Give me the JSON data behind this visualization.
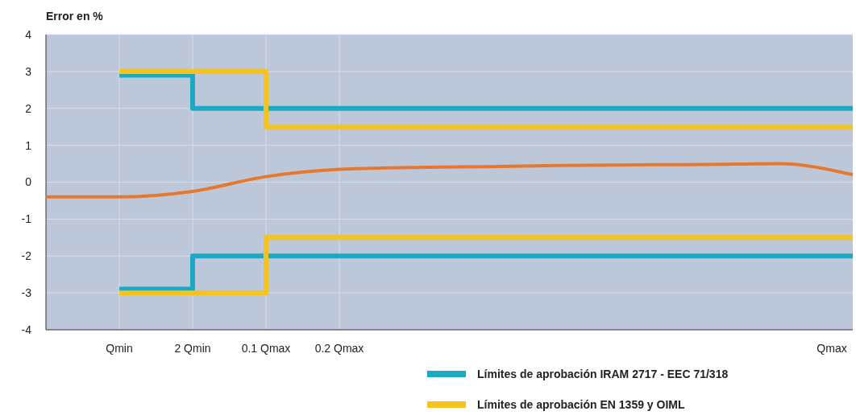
{
  "chart_data": {
    "type": "step",
    "ylabel": "Error en %",
    "categories": [
      null,
      "Qmin",
      "2 Qmin",
      "0.1 Qmax",
      "0.2 Qmax",
      null,
      null,
      null,
      null,
      null,
      null,
      "Qmax"
    ],
    "ylim": [
      -4,
      4
    ],
    "yticks": [
      -4,
      -3,
      -2,
      -1,
      0,
      1,
      2,
      3,
      4
    ],
    "grid": true,
    "legend": "bottom right",
    "series": [
      {
        "name": "Límites de aprobación IRAM 2717 - EEC 71/318",
        "color": "#1ba9c4",
        "values": [
          null,
          2.9,
          2,
          2,
          2,
          2,
          2,
          2,
          2,
          2,
          2,
          2
        ]
      },
      {
        "color": "#1ba9c4",
        "values": [
          null,
          -2.9,
          -2,
          -2,
          -2,
          -2,
          -2,
          -2,
          -2,
          -2,
          -2,
          -2
        ]
      },
      {
        "name": "Límites de aprobación EN 1359 y OIML",
        "color": "#f6c21c",
        "values": [
          null,
          3,
          3,
          1.5,
          1.5,
          1.5,
          1.5,
          1.5,
          1.5,
          1.5,
          1.5,
          1.5
        ]
      },
      {
        "color": "#f6c21c",
        "values": [
          null,
          -3,
          -3,
          -1.5,
          -1.5,
          -1.5,
          -1.5,
          -1.5,
          -1.5,
          -1.5,
          -1.5,
          -1.5
        ]
      },
      {
        "type": "line",
        "color": "#e8772e",
        "values": [
          -0.4,
          -0.4,
          -0.25,
          0.15,
          0.35,
          0.4,
          0.42,
          0.45,
          0.47,
          0.48,
          0.5,
          0.2
        ]
      }
    ]
  }
}
